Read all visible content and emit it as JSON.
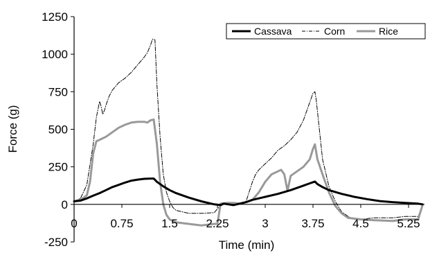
{
  "chart_data": {
    "type": "line",
    "title": "",
    "xlabel": "Time (min)",
    "ylabel": "Force (g)",
    "xlim": [
      0,
      5.5
    ],
    "ylim": [
      -250,
      1250
    ],
    "x_ticks": [
      0,
      0.75,
      1.5,
      2.25,
      3,
      3.75,
      4.5,
      5.25
    ],
    "x_tick_labels": [
      "0",
      "0.75",
      "1.5",
      "2.25",
      "3",
      "3.75",
      "4.5",
      "5.25"
    ],
    "y_ticks": [
      -250,
      0,
      250,
      500,
      750,
      1000,
      1250
    ],
    "y_tick_labels": [
      "-250",
      "0",
      "250",
      "500",
      "750",
      "1000",
      "1250"
    ],
    "grid": false,
    "legend_position": "top-right",
    "series": [
      {
        "name": "Cassava",
        "color": "#000000",
        "style": "solid-thick",
        "x": [
          0,
          0.1,
          0.2,
          0.3,
          0.4,
          0.5,
          0.6,
          0.7,
          0.8,
          0.9,
          1.0,
          1.1,
          1.2,
          1.25,
          1.3,
          1.4,
          1.5,
          1.6,
          1.8,
          2.0,
          2.2,
          2.3,
          2.35,
          2.5,
          2.6,
          2.7,
          2.8,
          3.0,
          3.2,
          3.4,
          3.6,
          3.7,
          3.78,
          3.82,
          3.9,
          4.0,
          4.2,
          4.4,
          4.6,
          4.8,
          5.0,
          5.2,
          5.4,
          5.47
        ],
        "y": [
          20,
          25,
          40,
          58,
          75,
          95,
          115,
          130,
          145,
          158,
          165,
          170,
          172,
          172,
          150,
          120,
          95,
          75,
          45,
          20,
          0,
          -5,
          5,
          -5,
          5,
          15,
          30,
          50,
          70,
          95,
          125,
          140,
          152,
          135,
          115,
          95,
          70,
          50,
          35,
          22,
          15,
          10,
          5,
          0
        ]
      },
      {
        "name": "Corn",
        "color": "#000000",
        "style": "dash-dot-thin",
        "x": [
          0,
          0.1,
          0.2,
          0.3,
          0.35,
          0.4,
          0.42,
          0.45,
          0.48,
          0.5,
          0.55,
          0.6,
          0.7,
          0.8,
          0.9,
          1.0,
          1.1,
          1.15,
          1.2,
          1.23,
          1.25,
          1.27,
          1.3,
          1.35,
          1.4,
          1.45,
          1.5,
          1.55,
          1.6,
          1.8,
          2.0,
          2.2,
          2.3,
          2.4,
          2.5,
          2.6,
          2.7,
          2.8,
          2.85,
          2.9,
          3.0,
          3.1,
          3.2,
          3.3,
          3.4,
          3.5,
          3.6,
          3.7,
          3.75,
          3.78,
          3.8,
          3.85,
          3.9,
          4.0,
          4.1,
          4.2,
          4.3,
          4.4,
          4.5,
          4.7,
          5.0,
          5.2,
          5.4,
          5.47
        ],
        "y": [
          20,
          40,
          130,
          400,
          580,
          685,
          660,
          600,
          630,
          660,
          720,
          760,
          810,
          840,
          880,
          930,
          980,
          1010,
          1060,
          1100,
          1100,
          1095,
          800,
          450,
          200,
          80,
          20,
          -20,
          -40,
          -60,
          -60,
          -55,
          -5,
          10,
          10,
          0,
          20,
          150,
          200,
          230,
          270,
          310,
          360,
          390,
          430,
          480,
          560,
          680,
          740,
          750,
          700,
          500,
          300,
          120,
          20,
          -50,
          -80,
          -100,
          -100,
          -90,
          -90,
          -80,
          -80,
          -10
        ]
      },
      {
        "name": "Rice",
        "color": "#999999",
        "style": "solid-thick",
        "x": [
          0,
          0.1,
          0.2,
          0.25,
          0.3,
          0.35,
          0.4,
          0.45,
          0.5,
          0.6,
          0.7,
          0.8,
          0.9,
          1.0,
          1.1,
          1.15,
          1.2,
          1.25,
          1.3,
          1.35,
          1.4,
          1.45,
          1.5,
          1.6,
          1.8,
          2.0,
          2.2,
          2.25,
          2.3,
          2.4,
          2.5,
          2.6,
          2.7,
          2.8,
          2.9,
          3.0,
          3.1,
          3.2,
          3.25,
          3.3,
          3.35,
          3.4,
          3.5,
          3.6,
          3.7,
          3.75,
          3.78,
          3.82,
          3.9,
          4.0,
          4.1,
          4.2,
          4.3,
          4.4,
          4.5,
          4.7,
          5.0,
          5.2,
          5.4,
          5.47
        ],
        "y": [
          20,
          30,
          60,
          150,
          340,
          420,
          430,
          440,
          450,
          480,
          510,
          530,
          545,
          550,
          550,
          545,
          560,
          565,
          400,
          150,
          0,
          -70,
          -100,
          -120,
          -130,
          -140,
          -130,
          -130,
          5,
          10,
          10,
          5,
          15,
          30,
          80,
          150,
          200,
          220,
          230,
          200,
          90,
          190,
          220,
          250,
          300,
          370,
          400,
          300,
          200,
          80,
          -10,
          -60,
          -90,
          -95,
          -100,
          -105,
          -110,
          -100,
          -100,
          -5
        ]
      }
    ]
  }
}
